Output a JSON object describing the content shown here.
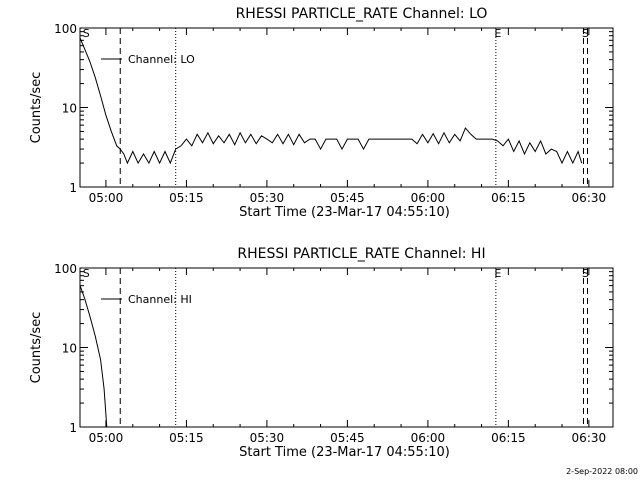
{
  "chart_data": [
    {
      "type": "line",
      "title": "RHESSI PARTICLE_RATE Channel: LO",
      "xlabel": "Start Time (23-Mar-17 04:55:10)",
      "ylabel": "Counts/sec",
      "y_scale": "log",
      "ylim": [
        1,
        100
      ],
      "xlim": [
        "04:55:10",
        "06:34:30"
      ],
      "x_ticks": [
        "05:00",
        "05:15",
        "05:30",
        "05:45",
        "06:00",
        "06:15",
        "06:30"
      ],
      "y_ticks": [
        "1",
        "10",
        "100"
      ],
      "legend": {
        "entries": [
          "Channel: LO"
        ],
        "placement": "top-left"
      },
      "markers": [
        {
          "label": "S",
          "time": "04:55:30",
          "style": "none"
        },
        {
          "label": "",
          "time": "05:02:40",
          "style": "dashed"
        },
        {
          "label": "",
          "time": "05:13:00",
          "style": "dotted"
        },
        {
          "label": "E",
          "time": "06:12:40",
          "style": "dotted"
        },
        {
          "label": "S",
          "time": "06:29:00",
          "style": "dashed"
        }
      ],
      "series": [
        {
          "name": "Channel: LO",
          "x": [
            "04:55:10",
            "04:56:00",
            "04:57:00",
            "04:58:00",
            "04:59:00",
            "05:00:00",
            "05:01:00",
            "05:02:00",
            "05:02:40",
            "05:03:20",
            "05:04:00",
            "05:05:00",
            "05:06:00",
            "05:07:00",
            "05:08:00",
            "05:09:00",
            "05:10:00",
            "05:11:00",
            "05:12:00",
            "05:13:00",
            "05:14:00",
            "05:15:00",
            "05:16:00",
            "05:17:00",
            "05:18:00",
            "05:19:00",
            "05:20:00",
            "05:21:00",
            "05:22:00",
            "05:23:00",
            "05:24:00",
            "05:25:00",
            "05:26:00",
            "05:27:00",
            "05:28:00",
            "05:29:00",
            "05:30:00",
            "05:31:00",
            "05:32:00",
            "05:33:00",
            "05:34:00",
            "05:35:00",
            "05:36:00",
            "05:37:00",
            "05:38:00",
            "05:39:00",
            "05:40:00",
            "05:41:00",
            "05:42:00",
            "05:43:00",
            "05:44:00",
            "05:45:00",
            "05:46:00",
            "05:47:00",
            "05:48:00",
            "05:49:00",
            "05:50:00",
            "05:51:00",
            "05:52:00",
            "05:53:00",
            "05:54:00",
            "05:55:00",
            "05:56:00",
            "05:57:00",
            "05:58:00",
            "05:59:00",
            "06:00:00",
            "06:01:00",
            "06:02:00",
            "06:03:00",
            "06:04:00",
            "06:05:00",
            "06:06:00",
            "06:07:00",
            "06:08:00",
            "06:09:00",
            "06:10:00",
            "06:11:00",
            "06:12:00",
            "06:13:00",
            "06:14:00",
            "06:15:00",
            "06:16:00",
            "06:17:00",
            "06:18:00",
            "06:19:00",
            "06:20:00",
            "06:21:00",
            "06:22:00",
            "06:23:00",
            "06:24:00",
            "06:25:00",
            "06:26:00",
            "06:27:00",
            "06:28:00",
            "06:28:40"
          ],
          "values": [
            75,
            55,
            38,
            24,
            14,
            8,
            5,
            3.3,
            3,
            2.6,
            2,
            2.8,
            2,
            2.6,
            2,
            2.8,
            2,
            2.8,
            2,
            3,
            3.3,
            4,
            3.3,
            4.6,
            3.6,
            4.8,
            3.5,
            4.4,
            3.6,
            4.6,
            3.4,
            4.8,
            3.6,
            4.6,
            3.5,
            4.4,
            4,
            3.6,
            4.6,
            3.5,
            4.6,
            3.4,
            4.6,
            3.6,
            4,
            4,
            3,
            4,
            4,
            4,
            3,
            4,
            4,
            4,
            3,
            4,
            4,
            4,
            4,
            4,
            4,
            4,
            4,
            4,
            3.5,
            4.6,
            3.6,
            4.7,
            3.5,
            4.8,
            3.6,
            4.6,
            3.8,
            5.5,
            4.6,
            4,
            4,
            4,
            4,
            3.8,
            3.3,
            4,
            2.8,
            3.8,
            2.6,
            3.6,
            2.8,
            3.8,
            2.6,
            3,
            2.8,
            2,
            2.8,
            2,
            2.8,
            2
          ]
        }
      ]
    },
    {
      "type": "line",
      "title": "RHESSI PARTICLE_RATE Channel: HI",
      "xlabel": "Start Time (23-Mar-17 04:55:10)",
      "ylabel": "Counts/sec",
      "y_scale": "log",
      "ylim": [
        1,
        100
      ],
      "xlim": [
        "04:55:10",
        "06:34:30"
      ],
      "x_ticks": [
        "05:00",
        "05:15",
        "05:30",
        "05:45",
        "06:00",
        "06:15",
        "06:30"
      ],
      "y_ticks": [
        "1",
        "10",
        "100"
      ],
      "legend": {
        "entries": [
          "Channel: HI"
        ],
        "placement": "top-left"
      },
      "markers": [
        {
          "label": "S",
          "time": "04:55:30",
          "style": "none"
        },
        {
          "label": "",
          "time": "05:02:40",
          "style": "dashed"
        },
        {
          "label": "",
          "time": "05:13:00",
          "style": "dotted"
        },
        {
          "label": "E",
          "time": "06:12:40",
          "style": "dotted"
        },
        {
          "label": "S",
          "time": "06:29:00",
          "style": "dashed"
        }
      ],
      "series": [
        {
          "name": "Channel: HI",
          "x": [
            "04:55:10",
            "04:56:00",
            "04:57:00",
            "04:58:00",
            "04:59:00",
            "04:59:40",
            "05:00:10"
          ],
          "values": [
            60,
            42,
            25,
            14,
            7,
            3,
            1
          ]
        }
      ]
    }
  ],
  "footer": {
    "timestamp": "2-Sep-2022 08:00"
  }
}
